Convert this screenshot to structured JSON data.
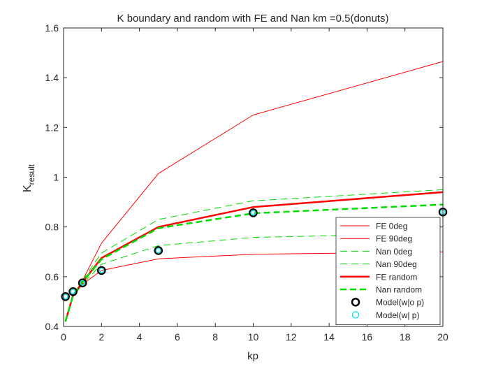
{
  "chart_data": {
    "type": "line",
    "title": "K boundary and random with FE and Nan km =0.5(donuts)",
    "xlabel": "kp",
    "ylabel_main": "K",
    "ylabel_sub": "result",
    "xlim": [
      0,
      20
    ],
    "ylim": [
      0.4,
      1.6
    ],
    "xticks": [
      0,
      2,
      4,
      6,
      8,
      10,
      12,
      14,
      16,
      18,
      20
    ],
    "yticks": [
      0.4,
      0.6,
      0.8,
      1.0,
      1.2,
      1.4,
      1.6
    ],
    "xtick_labels": [
      "0",
      "2",
      "4",
      "6",
      "8",
      "10",
      "12",
      "14",
      "16",
      "18",
      "20"
    ],
    "ytick_labels": [
      "0.4",
      "0.6",
      "0.8",
      "1",
      "1.2",
      "1.4",
      "1.6"
    ],
    "grid": false,
    "legend_position": "bottom-right",
    "x": [
      0.1,
      0.5,
      1,
      2,
      5,
      10,
      20
    ],
    "series": [
      {
        "name": "FE 0deg",
        "color": "#ff0000",
        "style": "solid",
        "width": 1,
        "values": [
          0.42,
          0.525,
          0.585,
          0.735,
          1.015,
          1.25,
          1.465
        ]
      },
      {
        "name": "FE 90deg",
        "color": "#ff0000",
        "style": "solid",
        "width": 1,
        "values": [
          0.42,
          0.52,
          0.57,
          0.625,
          0.672,
          0.69,
          0.7
        ]
      },
      {
        "name": "Nan 0deg",
        "color": "#00dd00",
        "style": "dashed",
        "width": 1,
        "values": [
          0.42,
          0.525,
          0.585,
          0.695,
          0.83,
          0.905,
          0.95
        ]
      },
      {
        "name": "Nan 90deg",
        "color": "#00dd00",
        "style": "dashed",
        "width": 1,
        "values": [
          0.42,
          0.52,
          0.57,
          0.65,
          0.725,
          0.758,
          0.775
        ]
      },
      {
        "name": "FE random",
        "color": "#ff0000",
        "style": "solid",
        "width": 2.5,
        "values": [
          0.42,
          0.525,
          0.578,
          0.675,
          0.8,
          0.88,
          0.94
        ]
      },
      {
        "name": "Nan random",
        "color": "#00dd00",
        "style": "dashed",
        "width": 2.5,
        "values": [
          0.42,
          0.525,
          0.578,
          0.67,
          0.795,
          0.855,
          0.89
        ]
      }
    ],
    "markers": [
      {
        "name": "Model(w|o p)",
        "color": "#000000",
        "values": [
          0.52,
          0.54,
          0.575,
          0.625,
          0.705,
          0.857,
          0.86
        ]
      },
      {
        "name": "Model(w| p)",
        "color": "#00e5ee",
        "values": [
          0.52,
          0.54,
          0.575,
          0.625,
          0.705,
          0.857,
          0.86
        ]
      }
    ]
  }
}
